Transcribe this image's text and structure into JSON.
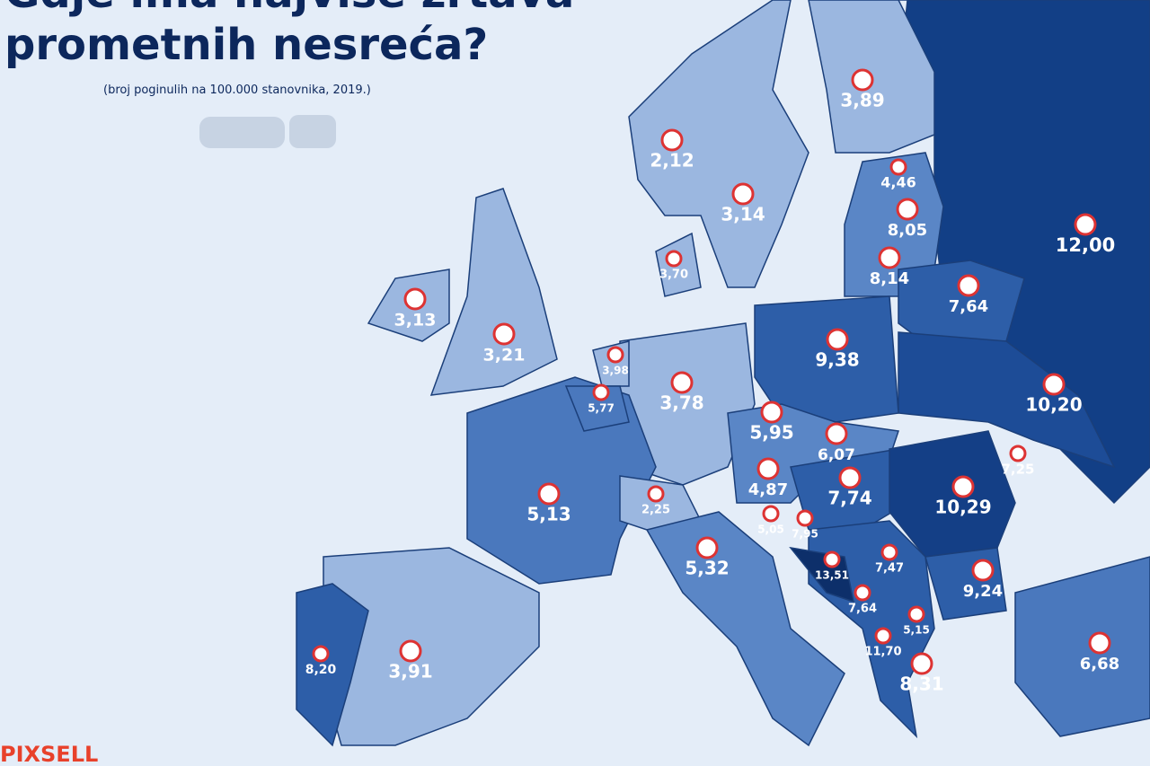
{
  "header": {
    "title_line1": "Gdje ima najviše žrtava",
    "title_line2": "prometnih nesreća?",
    "subtitle": "(broj poginulih na 100.000 stanovnika, 2019.)"
  },
  "labels": [
    "3,89",
    "2,12",
    "3,14",
    "4,46",
    "8,05",
    "12,00",
    "8,14",
    "7,64",
    "3,70",
    "3,13",
    "3,21",
    "3,98",
    "5,77",
    "3,78",
    "9,38",
    "10,20",
    "5,95",
    "6,07",
    "7,25",
    "4,87",
    "7,74",
    "10,29",
    "5,13",
    "2,25",
    "5,05",
    "7,95",
    "5,32",
    "13,51",
    "7,47",
    "9,24",
    "7,64",
    "5,15",
    "11,70",
    "8,31",
    "6,68",
    "8,20",
    "3,91"
  ],
  "logo": "PIXSELL"
}
